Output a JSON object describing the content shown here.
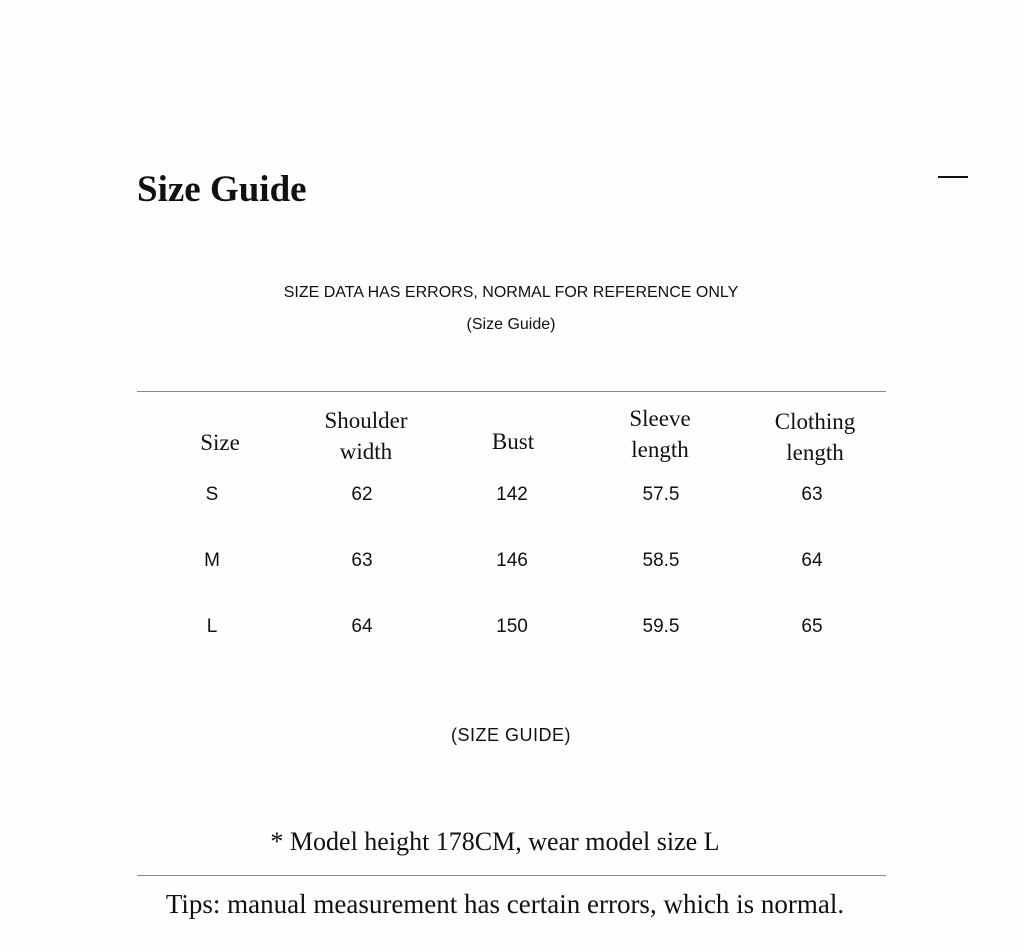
{
  "title": "Size Guide",
  "notice": "SIZE DATA HAS ERRORS, NORMAL FOR REFERENCE ONLY",
  "subtitle": "(Size Guide)",
  "table": {
    "headers": [
      {
        "line1": "Size",
        "line2": ""
      },
      {
        "line1": "Shoulder",
        "line2": "width"
      },
      {
        "line1": "Bust",
        "line2": ""
      },
      {
        "line1": "Sleeve",
        "line2": "length"
      },
      {
        "line1": "Clothing",
        "line2": "length"
      }
    ],
    "rows": [
      [
        "S",
        "62",
        "142",
        "57.5",
        "63"
      ],
      [
        "M",
        "63",
        "146",
        "58.5",
        "64"
      ],
      [
        "L",
        "64",
        "150",
        "59.5",
        "65"
      ]
    ]
  },
  "caption": "(SIZE GUIDE)",
  "model_note": "* Model height 178CM, wear model size L",
  "tips": "Tips: manual measurement has certain errors, which is normal."
}
